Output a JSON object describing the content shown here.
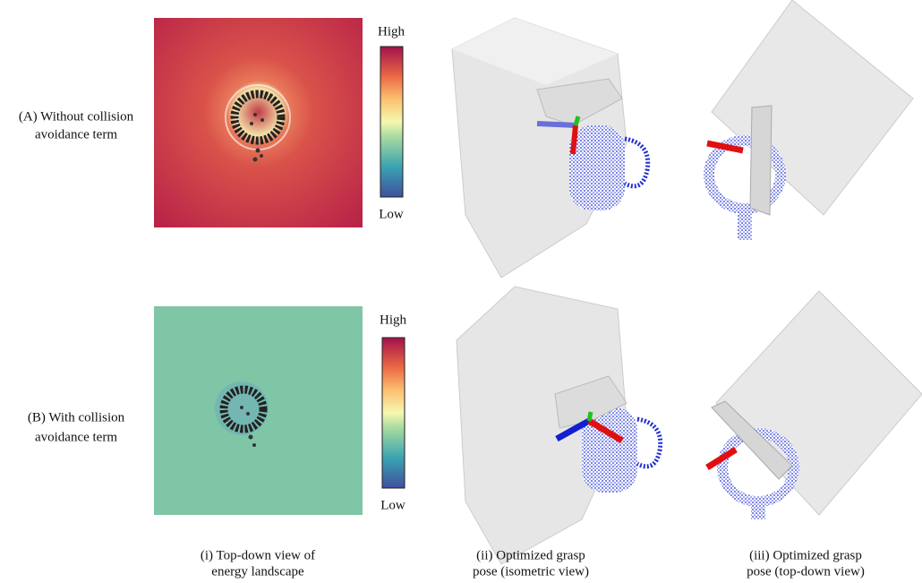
{
  "rows": [
    {
      "label_lines": [
        "(A) Without collision",
        "avoidance term"
      ],
      "colorbar": {
        "high": "High",
        "low": "Low"
      }
    },
    {
      "label_lines": [
        "(B) With collision",
        "avoidance term"
      ],
      "colorbar": {
        "high": "High",
        "low": "Low"
      }
    }
  ],
  "captions": [
    [
      "(i) Top-down view of",
      "energy landscape"
    ],
    [
      "(ii) Optimized grasp",
      "pose (isometric view)"
    ],
    [
      "(iii) Optimized grasp",
      "pose (top-down view)"
    ]
  ]
}
